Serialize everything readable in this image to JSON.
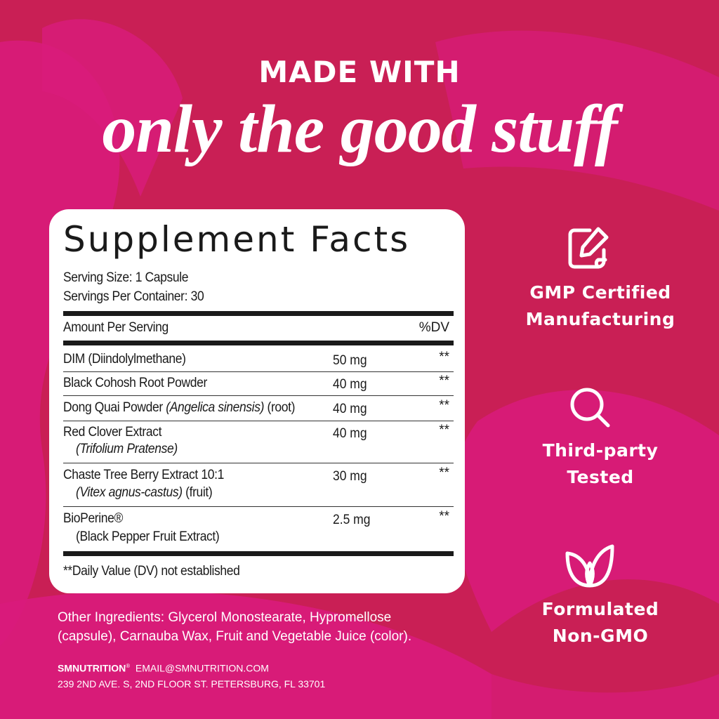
{
  "header": {
    "line1": "MADE WITH",
    "line2": "only the good stuff"
  },
  "colors": {
    "background": "#c91f55",
    "accent_swirl": "#d91b7c",
    "card": "#ffffff",
    "text_dark": "#1a1a1a"
  },
  "facts": {
    "title": "Supplement Facts",
    "serving_size": "Serving Size: 1 Capsule",
    "servings_per_container": "Servings Per Container: 30",
    "amount_header": "Amount Per Serving",
    "dv_header": "%DV",
    "rows": [
      {
        "name": "DIM (Diindolylmethane)",
        "amount": "50 mg",
        "dv": "**"
      },
      {
        "name": "Black Cohosh Root Powder",
        "amount": "40 mg",
        "dv": "**"
      },
      {
        "name": "Dong Quai Powder",
        "latin": "(Angelica sinensis)",
        "suffix": "(root)",
        "amount": "40 mg",
        "dv": "**"
      },
      {
        "name": "Red Clover Extract",
        "sub": "(Trifolium Pratense)",
        "amount": "40 mg",
        "dv": "**"
      },
      {
        "name": "Chaste Tree Berry Extract 10:1",
        "sub": "(Vitex agnus-castus)",
        "sub_suffix": "(fruit)",
        "amount": "30 mg",
        "dv": "**"
      },
      {
        "name": "BioPerine®",
        "sub": "(Black Pepper Fruit Extract)",
        "amount": "2.5 mg",
        "dv": "**"
      }
    ],
    "footnote": "**Daily Value (DV) not established"
  },
  "other_ingredients": {
    "line1": "Other Ingredients: Glycerol Monostearate, Hypromellose",
    "line2": "(capsule), Carnauba Wax, Fruit and Vegetable Juice (color)."
  },
  "footer": {
    "brand": "SMNUTRITION",
    "reg": "®",
    "email": "EMAIL@SMNUTRITION.COM",
    "address": "239 2ND AVE. S, 2ND FLOOR  ST. PETERSBURG, FL 33701"
  },
  "features": [
    {
      "icon": "edit-document-icon",
      "line1": "GMP Certified",
      "line2": "Manufacturing"
    },
    {
      "icon": "magnifier-icon",
      "line1": "Third-party",
      "line2": "Tested"
    },
    {
      "icon": "leaf-icon",
      "line1": "Formulated",
      "line2": "Non-GMO"
    }
  ]
}
